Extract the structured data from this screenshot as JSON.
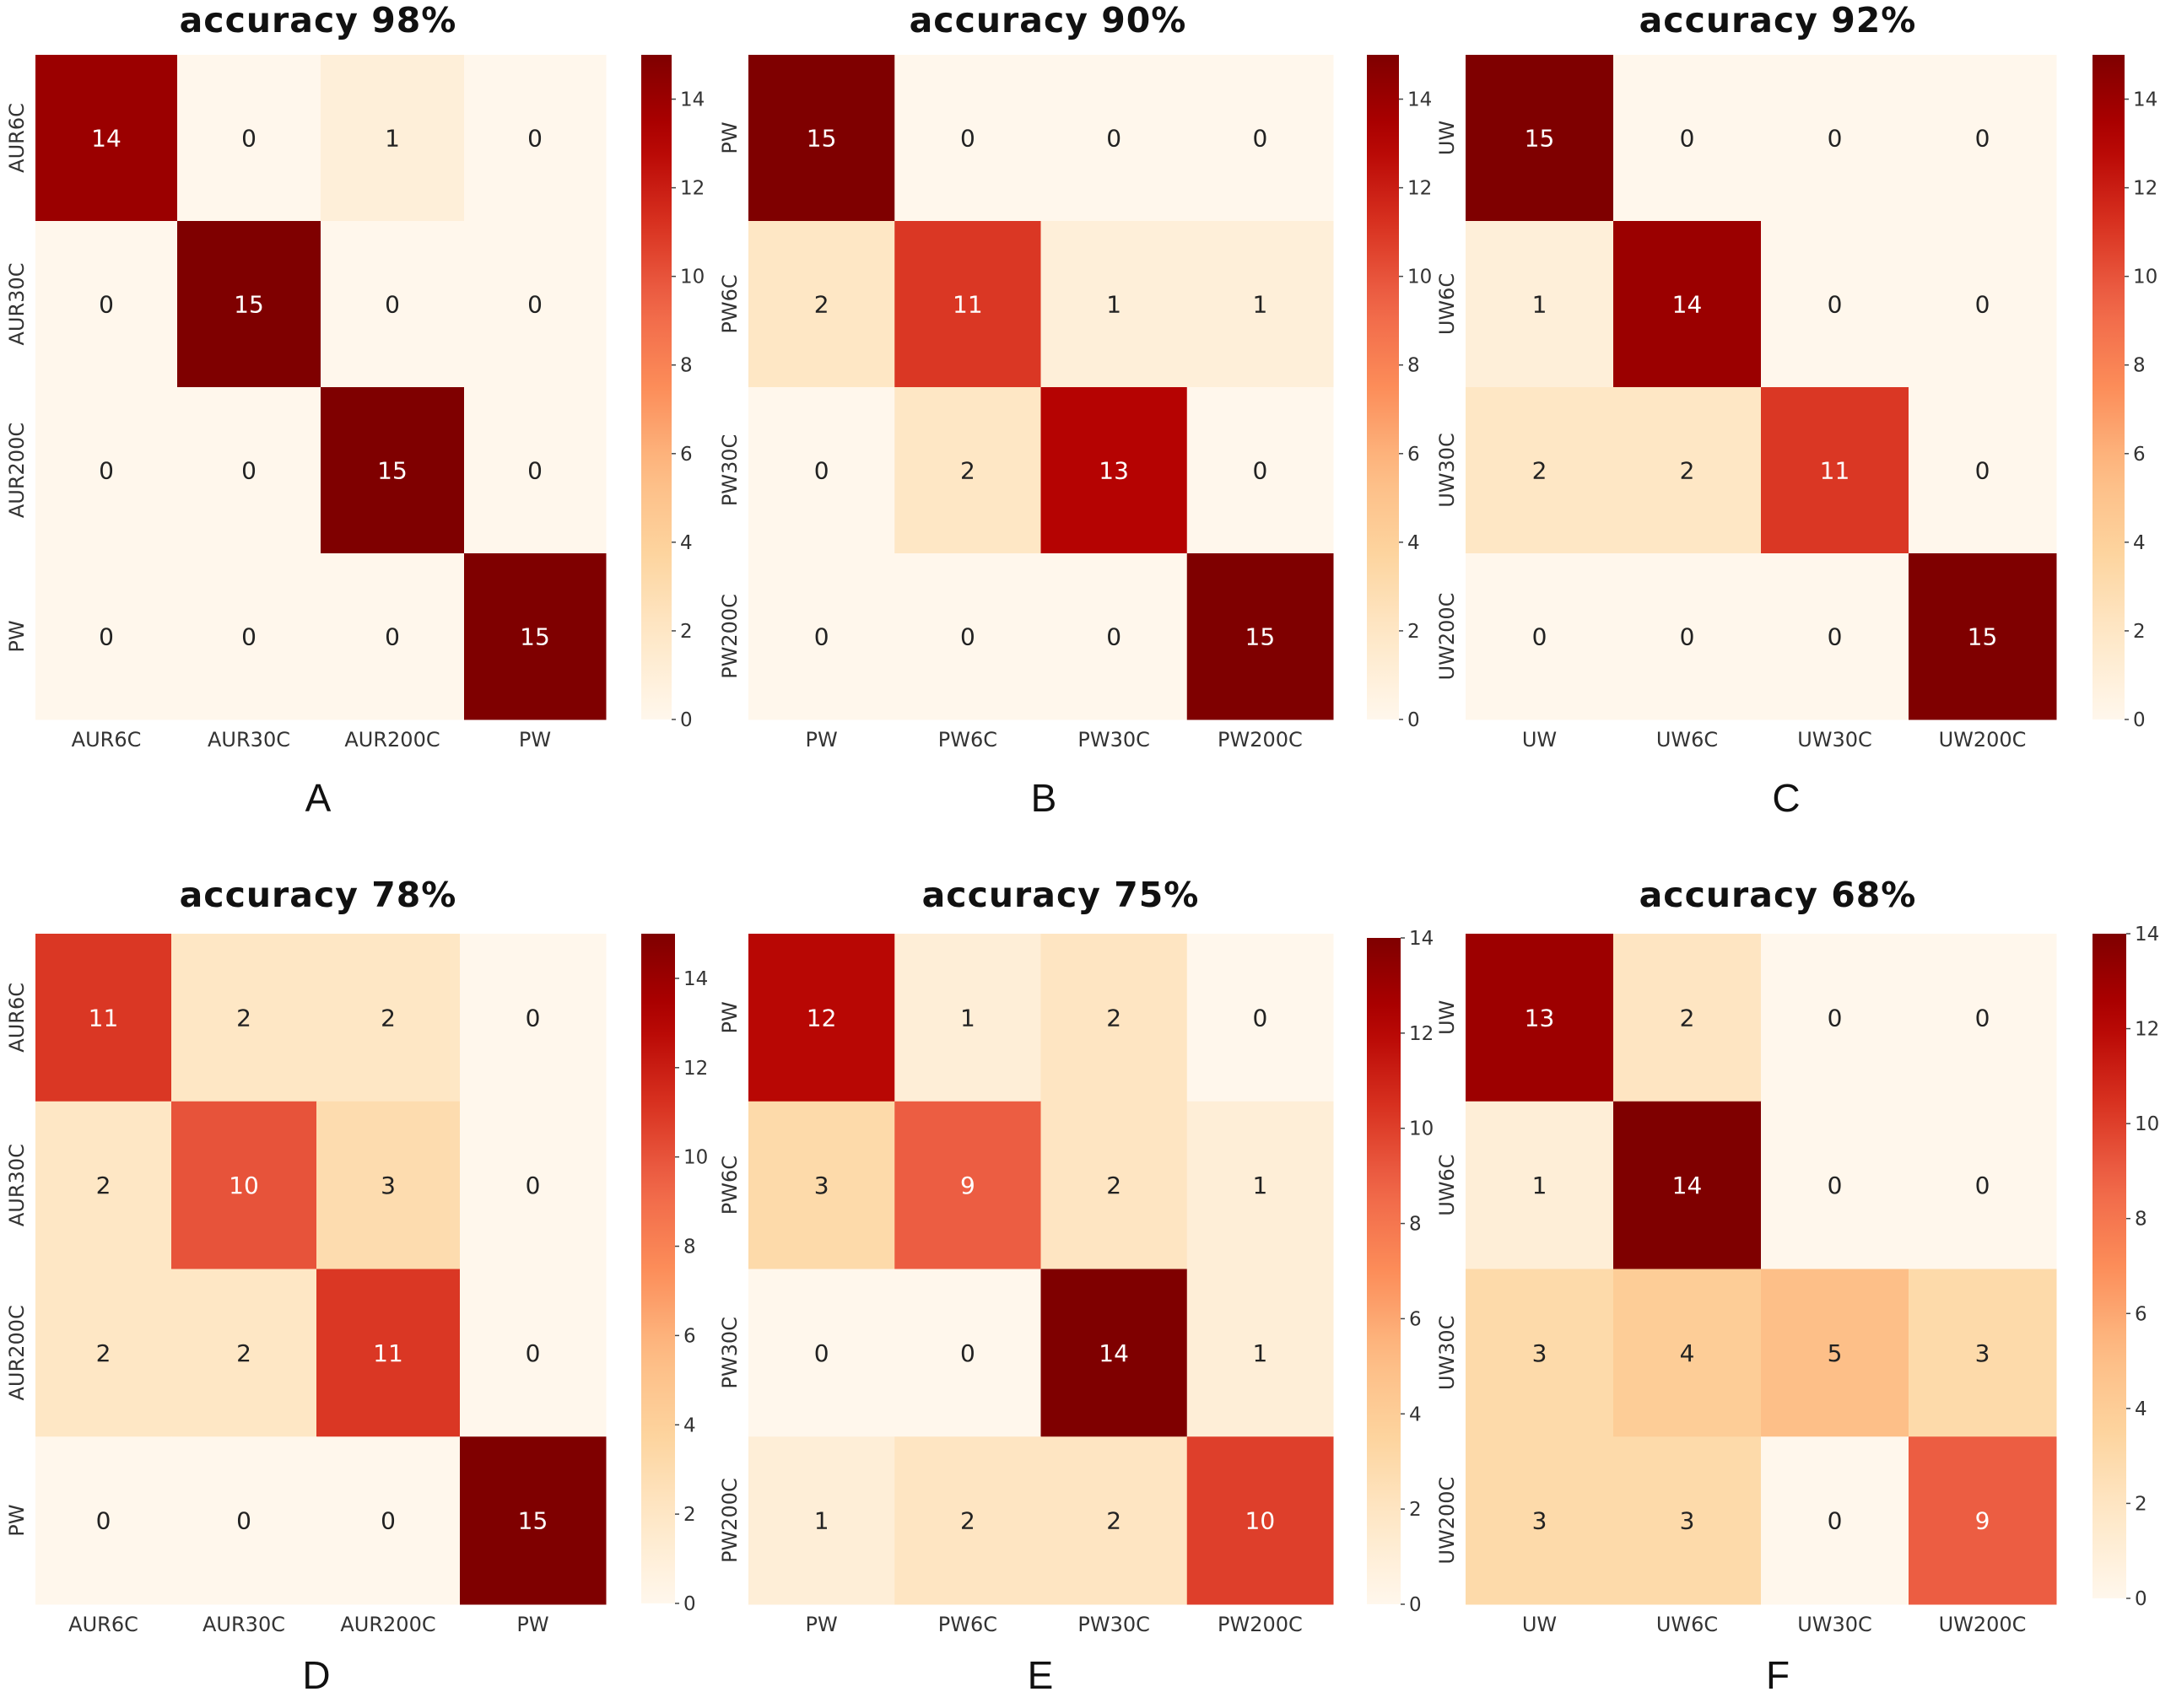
{
  "colormap": {
    "name": "OrRd",
    "stops": [
      "#fff7ec",
      "#fee8c8",
      "#fdd49e",
      "#fdbb84",
      "#fc8d59",
      "#ef6548",
      "#d7301f",
      "#b30000",
      "#7f0000"
    ]
  },
  "chart_data": [
    {
      "type": "heatmap",
      "panel": "A",
      "title": "accuracy 98%",
      "row_labels": [
        "AUR6C",
        "AUR30C",
        "AUR200C",
        "PW"
      ],
      "col_labels": [
        "AUR6C",
        "AUR30C",
        "AUR200C",
        "PW"
      ],
      "values": [
        [
          14,
          0,
          1,
          0
        ],
        [
          0,
          15,
          0,
          0
        ],
        [
          0,
          0,
          15,
          0
        ],
        [
          0,
          0,
          0,
          15
        ]
      ],
      "vmin": 0,
      "vmax": 15,
      "colorbar_ticks": [
        "0",
        "2",
        "4",
        "6",
        "8",
        "10",
        "12",
        "14"
      ]
    },
    {
      "type": "heatmap",
      "panel": "B",
      "title": "accuracy 90%",
      "row_labels": [
        "PW",
        "PW6C",
        "PW30C",
        "PW200C"
      ],
      "col_labels": [
        "PW",
        "PW6C",
        "PW30C",
        "PW200C"
      ],
      "values": [
        [
          15,
          0,
          0,
          0
        ],
        [
          2,
          11,
          1,
          1
        ],
        [
          0,
          2,
          13,
          0
        ],
        [
          0,
          0,
          0,
          15
        ]
      ],
      "vmin": 0,
      "vmax": 15,
      "colorbar_ticks": [
        "0",
        "2",
        "4",
        "6",
        "8",
        "10",
        "12",
        "14"
      ]
    },
    {
      "type": "heatmap",
      "panel": "C",
      "title": "accuracy 92%",
      "row_labels": [
        "UW",
        "UW6C",
        "UW30C",
        "UW200C"
      ],
      "col_labels": [
        "UW",
        "UW6C",
        "UW30C",
        "UW200C"
      ],
      "values": [
        [
          15,
          0,
          0,
          0
        ],
        [
          1,
          14,
          0,
          0
        ],
        [
          2,
          2,
          11,
          0
        ],
        [
          0,
          0,
          0,
          15
        ]
      ],
      "vmin": 0,
      "vmax": 15,
      "colorbar_ticks": [
        "0",
        "2",
        "4",
        "6",
        "8",
        "10",
        "12",
        "14"
      ]
    },
    {
      "type": "heatmap",
      "panel": "D",
      "title": "accuracy 78%",
      "row_labels": [
        "AUR6C",
        "AUR30C",
        "AUR200C",
        "PW"
      ],
      "col_labels": [
        "AUR6C",
        "AUR30C",
        "AUR200C",
        "PW"
      ],
      "values": [
        [
          11,
          2,
          2,
          0
        ],
        [
          2,
          10,
          3,
          0
        ],
        [
          2,
          2,
          11,
          0
        ],
        [
          0,
          0,
          0,
          15
        ]
      ],
      "vmin": 0,
      "vmax": 15,
      "colorbar_ticks": [
        "0",
        "2",
        "4",
        "6",
        "8",
        "10",
        "12",
        "14"
      ]
    },
    {
      "type": "heatmap",
      "panel": "E",
      "title": "accuracy 75%",
      "row_labels": [
        "PW",
        "PW6C",
        "PW30C",
        "PW200C"
      ],
      "col_labels": [
        "PW",
        "PW6C",
        "PW30C",
        "PW200C"
      ],
      "values": [
        [
          12,
          1,
          2,
          0
        ],
        [
          3,
          9,
          2,
          1
        ],
        [
          0,
          0,
          14,
          1
        ],
        [
          1,
          2,
          2,
          10
        ]
      ],
      "vmin": 0,
      "vmax": 14,
      "colorbar_ticks": [
        "0",
        "2",
        "4",
        "6",
        "8",
        "10",
        "12",
        "14"
      ]
    },
    {
      "type": "heatmap",
      "panel": "F",
      "title": "accuracy 68%",
      "row_labels": [
        "UW",
        "UW6C",
        "UW30C",
        "UW200C"
      ],
      "col_labels": [
        "UW",
        "UW6C",
        "UW30C",
        "UW200C"
      ],
      "values": [
        [
          13,
          2,
          0,
          0
        ],
        [
          1,
          14,
          0,
          0
        ],
        [
          3,
          4,
          5,
          3
        ],
        [
          3,
          3,
          0,
          9
        ]
      ],
      "vmin": 0,
      "vmax": 14,
      "colorbar_ticks": [
        "0",
        "2",
        "4",
        "6",
        "8",
        "10",
        "12",
        "14"
      ]
    }
  ]
}
